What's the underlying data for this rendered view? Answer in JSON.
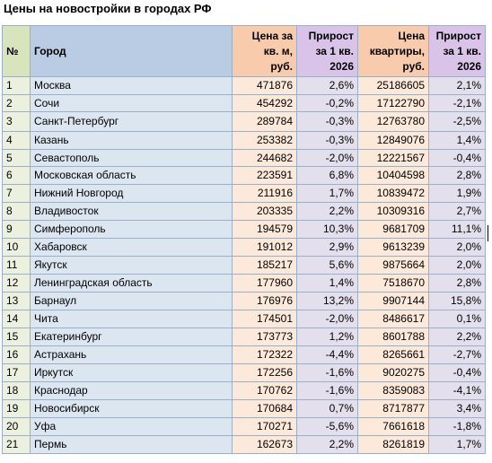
{
  "title": "Цены на новостройки в городах РФ",
  "headers": {
    "num": "№",
    "city": "Город",
    "price_line1": "Цена за",
    "price_line2": "кв. м,",
    "price_line3": "руб.",
    "growth1_line1": "Прирост",
    "growth1_line2": "за 1 кв.",
    "growth1_line3": "2026",
    "apt_line1": "Цена",
    "apt_line2": "квартиры,",
    "apt_line3": "руб.",
    "growth2_line1": "Прирост",
    "growth2_line2": "за 1 кв.",
    "growth2_line3": "2026"
  },
  "rows": [
    {
      "num": "1",
      "city": "Москва",
      "price": "471876",
      "growth1": "2,6%",
      "apt": "25186605",
      "growth2": "2,1%"
    },
    {
      "num": "2",
      "city": "Сочи",
      "price": "454292",
      "growth1": "-0,2%",
      "apt": "17122790",
      "growth2": "-2,1%"
    },
    {
      "num": "3",
      "city": "Санкт-Петербург",
      "price": "289784",
      "growth1": "-0,3%",
      "apt": "12763780",
      "growth2": "-2,5%"
    },
    {
      "num": "4",
      "city": "Казань",
      "price": "253382",
      "growth1": "-0,3%",
      "apt": "12849076",
      "growth2": "1,4%"
    },
    {
      "num": "5",
      "city": "Севастополь",
      "price": "244682",
      "growth1": "-2,0%",
      "apt": "12221567",
      "growth2": "-0,4%"
    },
    {
      "num": "6",
      "city": "Московская область",
      "price": "223591",
      "growth1": "6,8%",
      "apt": "10404598",
      "growth2": "2,8%"
    },
    {
      "num": "7",
      "city": "Нижний Новгород",
      "price": "211916",
      "growth1": "1,7%",
      "apt": "10839472",
      "growth2": "1,9%"
    },
    {
      "num": "8",
      "city": "Владивосток",
      "price": "203335",
      "growth1": "2,2%",
      "apt": "10309316",
      "growth2": "2,7%"
    },
    {
      "num": "9",
      "city": "Симферополь",
      "price": "194579",
      "growth1": "10,3%",
      "apt": "9681709",
      "growth2": "11,1%"
    },
    {
      "num": "10",
      "city": "Хабаровск",
      "price": "191012",
      "growth1": "2,9%",
      "apt": "9613239",
      "growth2": "2,0%"
    },
    {
      "num": "11",
      "city": "Якутск",
      "price": "185217",
      "growth1": "5,6%",
      "apt": "9875664",
      "growth2": "2,0%"
    },
    {
      "num": "12",
      "city": "Ленинградская область",
      "price": "177960",
      "growth1": "1,4%",
      "apt": "7518670",
      "growth2": "2,8%"
    },
    {
      "num": "13",
      "city": "Барнаул",
      "price": "176976",
      "growth1": "13,2%",
      "apt": "9907144",
      "growth2": "15,8%"
    },
    {
      "num": "14",
      "city": "Чита",
      "price": "174501",
      "growth1": "-2,0%",
      "apt": "8486617",
      "growth2": "0,1%"
    },
    {
      "num": "15",
      "city": "Екатеринбург",
      "price": "173773",
      "growth1": "1,2%",
      "apt": "8601788",
      "growth2": "2,2%"
    },
    {
      "num": "16",
      "city": "Астрахань",
      "price": "172322",
      "growth1": "-4,4%",
      "apt": "8265661",
      "growth2": "-2,7%"
    },
    {
      "num": "17",
      "city": "Иркутск",
      "price": "172256",
      "growth1": "-1,6%",
      "apt": "9020275",
      "growth2": "-0,4%"
    },
    {
      "num": "18",
      "city": "Краснодар",
      "price": "170762",
      "growth1": "-1,6%",
      "apt": "8359083",
      "growth2": "-4,1%"
    },
    {
      "num": "19",
      "city": "Новосибирск",
      "price": "170684",
      "growth1": "0,7%",
      "apt": "8717877",
      "growth2": "3,4%"
    },
    {
      "num": "20",
      "city": "Уфа",
      "price": "170271",
      "growth1": "-5,6%",
      "apt": "7661618",
      "growth2": "-1,8%"
    },
    {
      "num": "21",
      "city": "Пермь",
      "price": "162673",
      "growth1": "2,2%",
      "apt": "8261819",
      "growth2": "1,7%"
    }
  ]
}
